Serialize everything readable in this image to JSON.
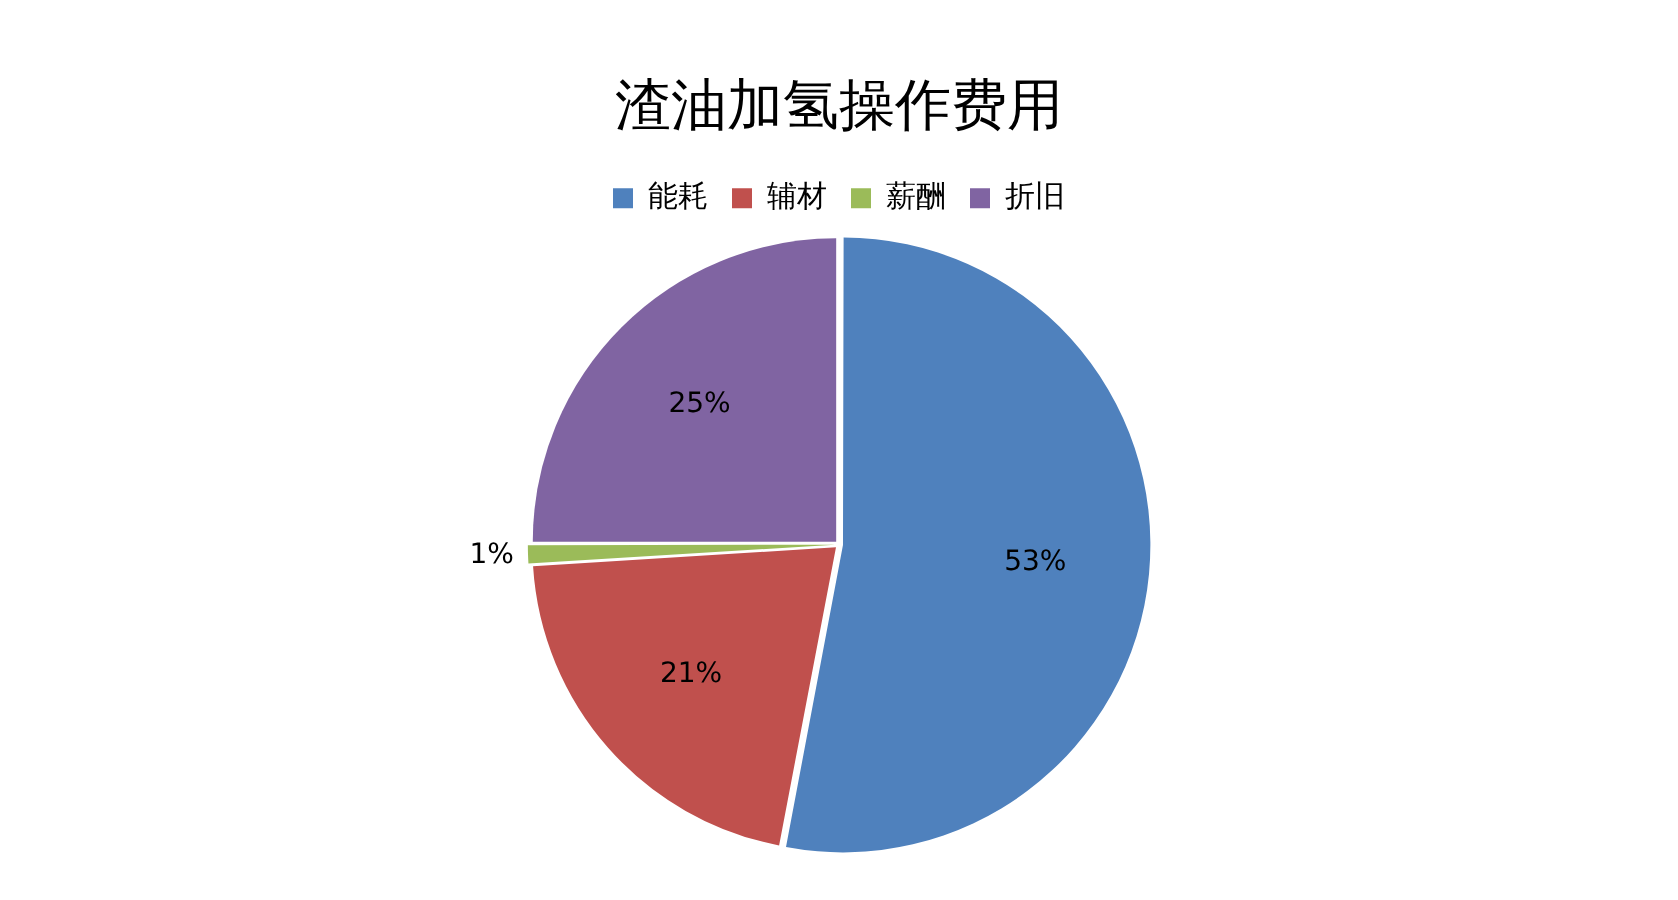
{
  "chart_data": {
    "type": "pie",
    "title": "渣油加氢操作费用",
    "categories": [
      "能耗",
      "辅材",
      "薪酬",
      "折旧"
    ],
    "values": [
      53,
      21,
      1,
      25
    ],
    "colors": [
      "#4f81bd",
      "#c0504d",
      "#9bbb59",
      "#8064a2"
    ],
    "value_labels": [
      "53%",
      "21%",
      "1%",
      "25%"
    ],
    "legend": "top"
  }
}
